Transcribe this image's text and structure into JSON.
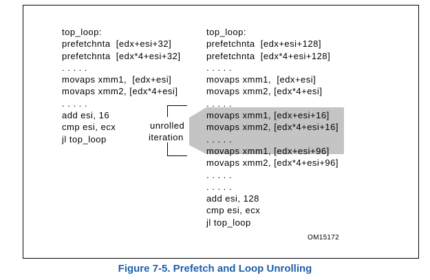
{
  "left_code": [
    "top_loop:",
    "prefetchnta  [edx+esi+32]",
    "prefetchnta  [edx*4+esi+32]",
    ". . . . .",
    "movaps xmm1,  [edx+esi]",
    "movaps xmm2, [edx*4+esi]",
    ". . . . .",
    "add esi, 16",
    "cmp esi, ecx",
    "jl top_loop"
  ],
  "right_code": [
    "top_loop:",
    "prefetchnta  [edx+esi+128]",
    "prefetchnta  [edx*4+esi+128]",
    ". . . . .",
    "movaps xmm1,  [edx+esi]",
    "movaps xmm2, [edx*4+esi]",
    ". . . . .",
    "movaps xmm1, [edx+esi+16]",
    "movaps xmm2, [edx*4+esi+16]",
    ". . . . .",
    "movaps xmm1, [edx+esi+96]",
    "movaps xmm2, [edx*4+esi+96]",
    ". . . . .",
    ". . . . .",
    "add esi, 128",
    "cmp esi, ecx",
    "jl top_loop"
  ],
  "annotation": {
    "line1": "unrolled",
    "line2": "iteration"
  },
  "ref_id": "OM15172",
  "caption": "Figure 7-5.  Prefetch and Loop Unrolling",
  "colors": {
    "caption": "#1f5fa8",
    "wedge": "#c4c4c4"
  }
}
